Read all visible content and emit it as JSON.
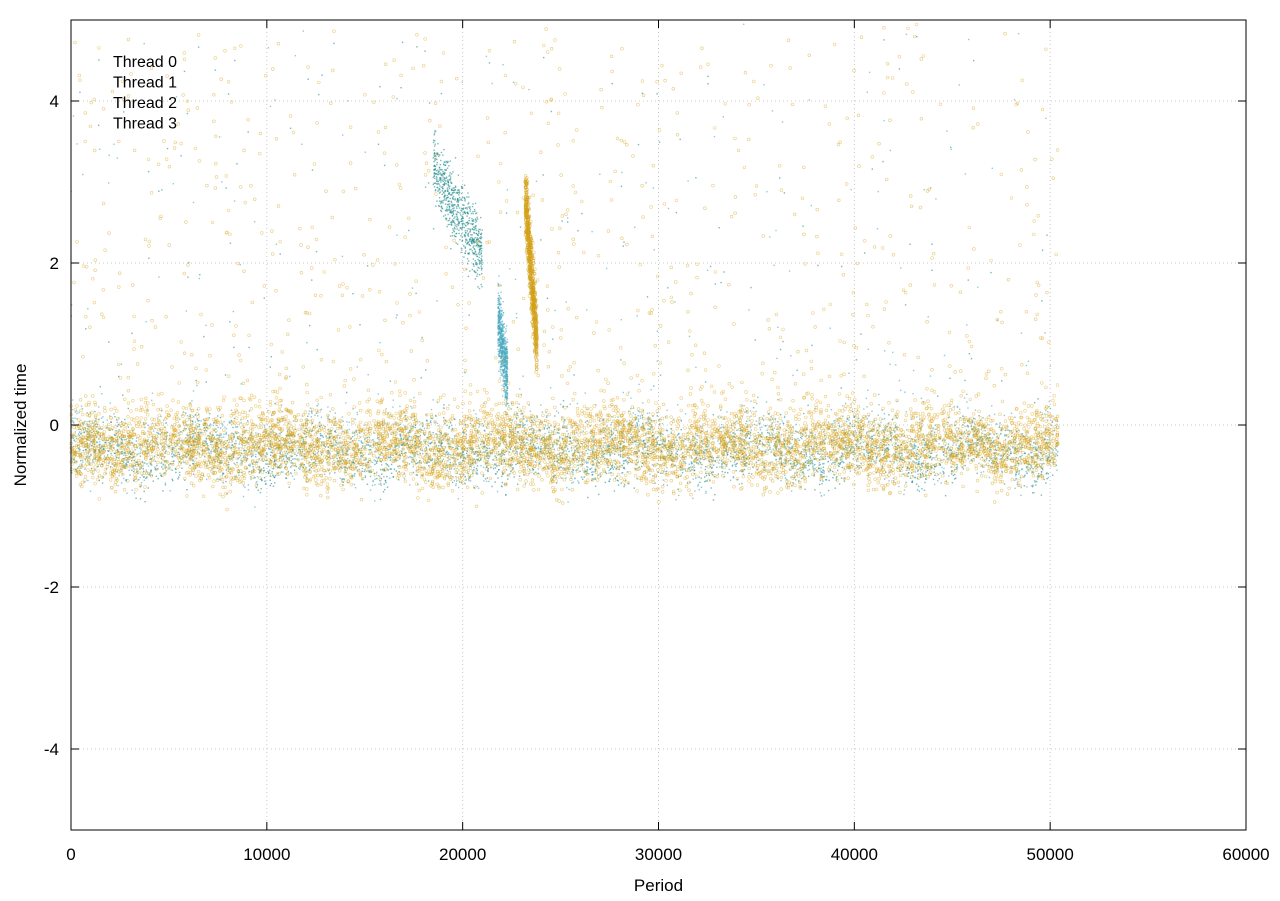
{
  "chart_data": {
    "type": "scatter",
    "title": "",
    "xlabel": "Period",
    "ylabel": "Normalized time",
    "xlim": [
      0,
      60000
    ],
    "ylim": [
      -5,
      5
    ],
    "xticks": [
      0,
      10000,
      20000,
      30000,
      40000,
      50000,
      60000
    ],
    "yticks": [
      -4,
      -2,
      0,
      2,
      4
    ],
    "grid": true,
    "legend_placement": "top-left",
    "data_x_range": [
      0,
      50400
    ],
    "series": [
      {
        "name": "Thread 0",
        "color": "#1f8a8a",
        "marker": "dot",
        "baseline_y": -0.35,
        "spread_y": 0.18,
        "notes_clusters": [
          {
            "x_from": 18500,
            "x_to": 21000,
            "y_from": 3.2,
            "y_to": 2.1
          }
        ]
      },
      {
        "name": "Thread 1",
        "color": "#4aa8c0",
        "marker": "dot",
        "baseline_y": -0.25,
        "spread_y": 0.22,
        "notes_clusters": [
          {
            "x_from": 21800,
            "x_to": 22300,
            "y_from": 1.3,
            "y_to": 0.6
          }
        ]
      },
      {
        "name": "Thread 2",
        "color": "#d4a017",
        "marker": "circle",
        "baseline_y": -0.3,
        "spread_y": 0.2,
        "notes_clusters": [
          {
            "x_from": 23200,
            "x_to": 23800,
            "y_from": 2.8,
            "y_to": 1.0
          }
        ]
      },
      {
        "name": "Thread 3",
        "color": "#e0a820",
        "marker": "circle",
        "baseline_y": -0.2,
        "spread_y": 0.25,
        "notes_clusters": []
      }
    ]
  }
}
